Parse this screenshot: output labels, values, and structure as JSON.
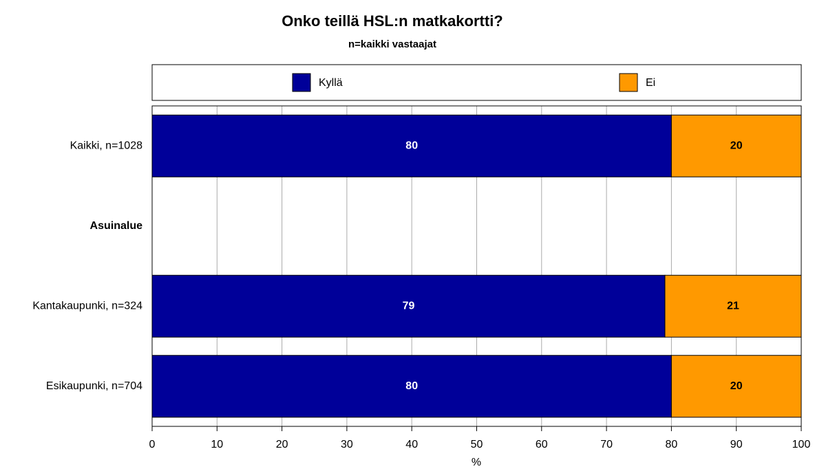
{
  "chart_data": {
    "type": "stacked-barh",
    "title": "Onko teillä HSL:n matkakortti?",
    "subtitle": "n=kaikki vastaajat",
    "categories": [
      "Kaikki, n=1028",
      "Asuinalue",
      "Kantakaupunki, n=324",
      "Esikaupunki, n=704"
    ],
    "series": [
      {
        "name": "Kyllä",
        "color": "#000099",
        "label_color": "#ffffff",
        "values": [
          80,
          null,
          79,
          80
        ]
      },
      {
        "name": "Ei",
        "color": "#ff9900",
        "label_color": "#000000",
        "values": [
          20,
          null,
          21,
          20
        ]
      }
    ],
    "xlabel": "%",
    "xlim": [
      0,
      100
    ],
    "xticks": [
      0,
      10,
      20,
      30,
      40,
      50,
      60,
      70,
      80,
      90,
      100
    ],
    "grid": true,
    "legend": "top"
  }
}
